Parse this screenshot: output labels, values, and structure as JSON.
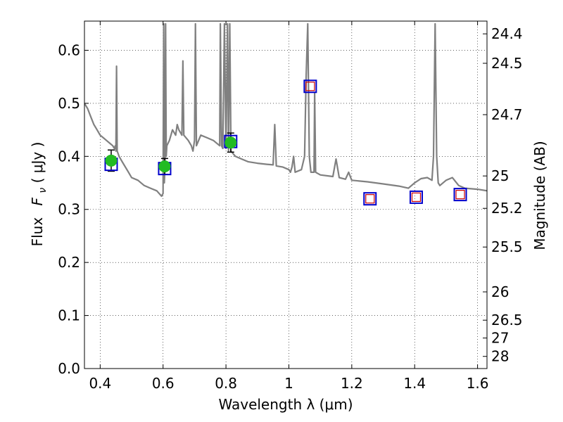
{
  "chart_data": {
    "type": "scatter",
    "xlabel": "Wavelength  λ (μm)",
    "ylabel_text": "Flux",
    "ylabel_symbol": "F",
    "ylabel_subscript": "ν",
    "ylabel_units": " ( μJy )",
    "y2label": "Magnitude (AB)",
    "xlim": [
      0.35,
      1.63
    ],
    "ylim": [
      0.0,
      0.655
    ],
    "grid": true,
    "x_ticks": [
      0.4,
      0.6,
      0.8,
      1.0,
      1.2,
      1.4,
      1.6
    ],
    "x_tick_labels": [
      "0.4",
      "0.6",
      "0.8",
      "1",
      "1.2",
      "1.4",
      "1.6"
    ],
    "y_ticks": [
      0.0,
      0.1,
      0.2,
      0.3,
      0.4,
      0.5,
      0.6
    ],
    "y_tick_labels": [
      "0.0",
      "0.1",
      "0.2",
      "0.3",
      "0.4",
      "0.5",
      "0.6"
    ],
    "mag_ticks": [
      24.4,
      24.5,
      24.7,
      25,
      25.2,
      25.5,
      26,
      26.5,
      27,
      28
    ],
    "mag_tick_labels": [
      "24.4",
      "24.5",
      "24.7",
      "25",
      "25.2",
      "25.5",
      "26",
      "26.5",
      "27",
      "28"
    ],
    "model_spectrum": {
      "color": "#808080",
      "points": [
        [
          0.35,
          0.5
        ],
        [
          0.36,
          0.49
        ],
        [
          0.37,
          0.475
        ],
        [
          0.38,
          0.46
        ],
        [
          0.39,
          0.45
        ],
        [
          0.4,
          0.44
        ],
        [
          0.41,
          0.435
        ],
        [
          0.42,
          0.43
        ],
        [
          0.43,
          0.425
        ],
        [
          0.44,
          0.42
        ],
        [
          0.445,
          0.415
        ],
        [
          0.448,
          0.42
        ],
        [
          0.45,
          0.41
        ],
        [
          0.452,
          0.57
        ],
        [
          0.454,
          0.41
        ],
        [
          0.46,
          0.4
        ],
        [
          0.47,
          0.39
        ],
        [
          0.48,
          0.38
        ],
        [
          0.49,
          0.37
        ],
        [
          0.5,
          0.36
        ],
        [
          0.52,
          0.355
        ],
        [
          0.54,
          0.345
        ],
        [
          0.56,
          0.34
        ],
        [
          0.58,
          0.335
        ],
        [
          0.595,
          0.325
        ],
        [
          0.6,
          0.33
        ],
        [
          0.602,
          0.65
        ],
        [
          0.604,
          0.35
        ],
        [
          0.606,
          0.38
        ],
        [
          0.608,
          0.65
        ],
        [
          0.61,
          0.4
        ],
        [
          0.612,
          0.42
        ],
        [
          0.62,
          0.43
        ],
        [
          0.63,
          0.45
        ],
        [
          0.64,
          0.44
        ],
        [
          0.645,
          0.46
        ],
        [
          0.65,
          0.45
        ],
        [
          0.66,
          0.44
        ],
        [
          0.663,
          0.58
        ],
        [
          0.666,
          0.44
        ],
        [
          0.68,
          0.43
        ],
        [
          0.69,
          0.42
        ],
        [
          0.695,
          0.41
        ],
        [
          0.7,
          0.43
        ],
        [
          0.703,
          0.65
        ],
        [
          0.706,
          0.42
        ],
        [
          0.72,
          0.44
        ],
        [
          0.74,
          0.435
        ],
        [
          0.76,
          0.43
        ],
        [
          0.78,
          0.42
        ],
        [
          0.782,
          0.65
        ],
        [
          0.786,
          0.42
        ],
        [
          0.79,
          0.415
        ],
        [
          0.795,
          0.65
        ],
        [
          0.8,
          0.415
        ],
        [
          0.805,
          0.65
        ],
        [
          0.808,
          0.41
        ],
        [
          0.812,
          0.65
        ],
        [
          0.816,
          0.41
        ],
        [
          0.83,
          0.4
        ],
        [
          0.85,
          0.395
        ],
        [
          0.87,
          0.39
        ],
        [
          0.9,
          0.387
        ],
        [
          0.93,
          0.385
        ],
        [
          0.95,
          0.384
        ],
        [
          0.955,
          0.46
        ],
        [
          0.96,
          0.382
        ],
        [
          0.98,
          0.38
        ],
        [
          1.0,
          0.375
        ],
        [
          1.005,
          0.37
        ],
        [
          1.01,
          0.38
        ],
        [
          1.015,
          0.4
        ],
        [
          1.02,
          0.37
        ],
        [
          1.04,
          0.375
        ],
        [
          1.05,
          0.4
        ],
        [
          1.055,
          0.55
        ],
        [
          1.06,
          0.65
        ],
        [
          1.065,
          0.4
        ],
        [
          1.07,
          0.37
        ],
        [
          1.08,
          0.37
        ],
        [
          1.082,
          0.52
        ],
        [
          1.085,
          0.37
        ],
        [
          1.1,
          0.365
        ],
        [
          1.14,
          0.362
        ],
        [
          1.15,
          0.395
        ],
        [
          1.16,
          0.36
        ],
        [
          1.18,
          0.357
        ],
        [
          1.19,
          0.37
        ],
        [
          1.2,
          0.355
        ],
        [
          1.25,
          0.352
        ],
        [
          1.3,
          0.348
        ],
        [
          1.35,
          0.344
        ],
        [
          1.38,
          0.34
        ],
        [
          1.4,
          0.35
        ],
        [
          1.42,
          0.358
        ],
        [
          1.44,
          0.36
        ],
        [
          1.455,
          0.355
        ],
        [
          1.46,
          0.4
        ],
        [
          1.465,
          0.65
        ],
        [
          1.47,
          0.4
        ],
        [
          1.475,
          0.35
        ],
        [
          1.48,
          0.345
        ],
        [
          1.5,
          0.355
        ],
        [
          1.52,
          0.36
        ],
        [
          1.54,
          0.345
        ],
        [
          1.56,
          0.34
        ],
        [
          1.6,
          0.338
        ],
        [
          1.63,
          0.335
        ]
      ]
    },
    "model_fluxes": {
      "edge_color": "#0000cc",
      "x": [
        0.435,
        0.605,
        0.815,
        1.068,
        1.258,
        1.405,
        1.545
      ],
      "y": [
        0.385,
        0.377,
        0.428,
        0.532,
        0.32,
        0.323,
        0.328
      ]
    },
    "predicted_fluxes": {
      "edge_color": "#cc0000",
      "x": [
        1.068,
        1.258,
        1.405,
        1.545
      ],
      "y": [
        0.532,
        0.32,
        0.323,
        0.328
      ]
    },
    "observed": {
      "color": "#22bb22",
      "x": [
        0.435,
        0.605,
        0.815
      ],
      "y": [
        0.392,
        0.381,
        0.426
      ],
      "yerr": [
        0.02,
        0.015,
        0.018
      ]
    }
  }
}
